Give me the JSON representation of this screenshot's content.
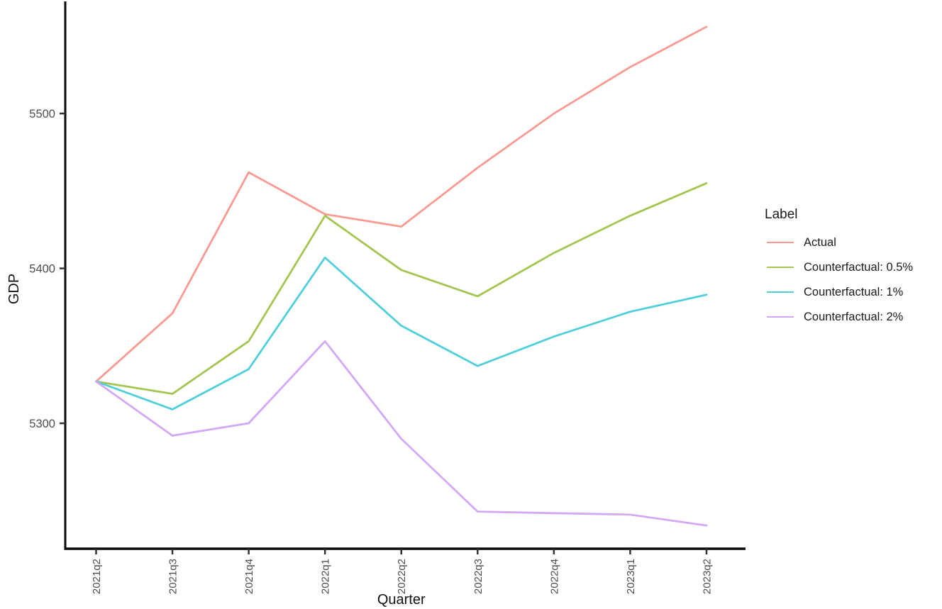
{
  "chart_data": {
    "type": "line",
    "title": "",
    "xlabel": "Quarter",
    "ylabel": "GDP",
    "categories": [
      "2021q2",
      "2021q3",
      "2021q4",
      "2022q1",
      "2022q2",
      "2022q3",
      "2022q4",
      "2023q1",
      "2023q2"
    ],
    "y_ticks": [
      "5300",
      "5400",
      "5500"
    ],
    "ylim": [
      5219,
      5571
    ],
    "grid": "off",
    "legend": {
      "title": "Label",
      "position": "right"
    },
    "series": [
      {
        "name": "Actual",
        "color": "#f89a91",
        "values": [
          5327,
          5371,
          5462,
          5435,
          5427,
          5465,
          5500,
          5530,
          5556
        ]
      },
      {
        "name": "Counterfactual: 0.5%",
        "color": "#a2c651",
        "values": [
          5327,
          5319,
          5353,
          5434,
          5399,
          5382,
          5410,
          5434,
          5455
        ]
      },
      {
        "name": "Counterfactual: 1%",
        "color": "#50cfdb",
        "values": [
          5327,
          5309,
          5335,
          5407,
          5363,
          5337,
          5356,
          5372,
          5383
        ]
      },
      {
        "name": "Counterfactual: 2%",
        "color": "#d3a8f4",
        "values": [
          5327,
          5292,
          5300,
          5353,
          5290,
          5243,
          5242,
          5241,
          5234
        ]
      }
    ],
    "colors": {
      "axis_line": "#0a0a0a",
      "tick_label": "#4d4d4d",
      "axis_title": "#111111"
    }
  }
}
